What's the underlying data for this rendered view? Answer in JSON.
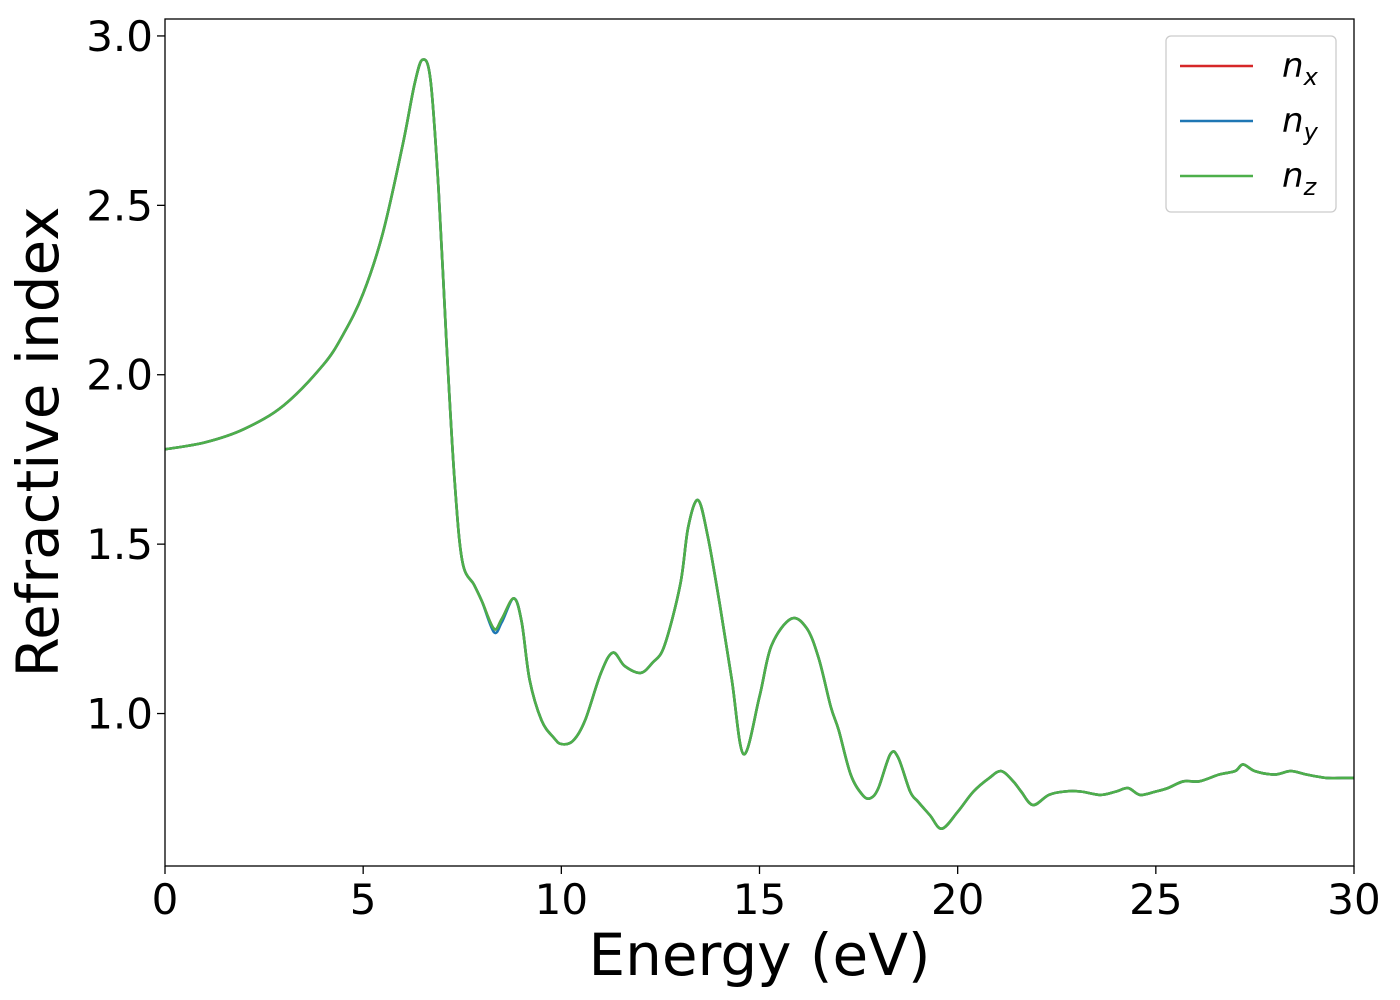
{
  "chart_data": {
    "type": "line",
    "title": "",
    "xlabel": "Energy (eV)",
    "ylabel": "Refractive index",
    "xlim": [
      0,
      30
    ],
    "ylim": [
      0.55,
      3.05
    ],
    "xticks": [
      0,
      5,
      10,
      15,
      20,
      25,
      30
    ],
    "xtick_labels": [
      "0",
      "5",
      "10",
      "15",
      "20",
      "25",
      "30"
    ],
    "yticks": [
      1.0,
      1.5,
      2.0,
      2.5,
      3.0
    ],
    "ytick_labels": [
      "1.0",
      "1.5",
      "2.0",
      "2.5",
      "3.0"
    ],
    "grid": false,
    "legend_position": "top-right",
    "series": [
      {
        "name": "n",
        "sub": "x",
        "color": "#d62728",
        "x": [
          0,
          1,
          2,
          3,
          4,
          4.5,
          5,
          5.5,
          6,
          6.3,
          6.5,
          6.7,
          6.9,
          7.1,
          7.3,
          7.5,
          7.8,
          8.0,
          8.3,
          8.5,
          8.8,
          9.0,
          9.2,
          9.5,
          9.8,
          10.0,
          10.3,
          10.6,
          11.0,
          11.3,
          11.6,
          12.0,
          12.3,
          12.6,
          13.0,
          13.2,
          13.45,
          13.7,
          14.0,
          14.3,
          14.6,
          15.0,
          15.3,
          15.8,
          16.2,
          16.5,
          16.8,
          17.0,
          17.3,
          17.6,
          17.8,
          18.0,
          18.3,
          18.5,
          18.8,
          19.0,
          19.3,
          19.6,
          20.0,
          20.4,
          20.8,
          21.1,
          21.4,
          21.6,
          21.9,
          22.3,
          22.7,
          23.1,
          23.6,
          24.0,
          24.3,
          24.6,
          25.0,
          25.3,
          25.7,
          26.1,
          26.6,
          27.0,
          27.2,
          27.5,
          28.0,
          28.4,
          28.8,
          29.3,
          29.7,
          30.0
        ],
        "y": [
          1.78,
          1.8,
          1.84,
          1.91,
          2.03,
          2.12,
          2.24,
          2.42,
          2.68,
          2.86,
          2.93,
          2.87,
          2.55,
          2.1,
          1.7,
          1.45,
          1.38,
          1.33,
          1.25,
          1.28,
          1.34,
          1.27,
          1.1,
          0.98,
          0.93,
          0.91,
          0.92,
          0.98,
          1.12,
          1.18,
          1.14,
          1.12,
          1.15,
          1.2,
          1.38,
          1.55,
          1.63,
          1.52,
          1.32,
          1.1,
          0.88,
          1.05,
          1.2,
          1.28,
          1.25,
          1.16,
          1.02,
          0.95,
          0.82,
          0.76,
          0.75,
          0.78,
          0.88,
          0.87,
          0.77,
          0.74,
          0.7,
          0.66,
          0.71,
          0.77,
          0.81,
          0.83,
          0.8,
          0.77,
          0.73,
          0.76,
          0.77,
          0.77,
          0.76,
          0.77,
          0.78,
          0.76,
          0.77,
          0.78,
          0.8,
          0.8,
          0.82,
          0.83,
          0.85,
          0.83,
          0.82,
          0.83,
          0.82,
          0.81,
          0.81,
          0.81
        ]
      },
      {
        "name": "n",
        "sub": "y",
        "color": "#1f77b4",
        "x": [
          0,
          1,
          2,
          3,
          4,
          4.5,
          5,
          5.5,
          6,
          6.3,
          6.5,
          6.7,
          6.9,
          7.1,
          7.3,
          7.5,
          7.8,
          8.0,
          8.3,
          8.5,
          8.8,
          9.0,
          9.2,
          9.5,
          9.8,
          10.0,
          10.3,
          10.6,
          11.0,
          11.3,
          11.6,
          12.0,
          12.3,
          12.6,
          13.0,
          13.2,
          13.45,
          13.7,
          14.0,
          14.3,
          14.6,
          15.0,
          15.3,
          15.8,
          16.2,
          16.5,
          16.8,
          17.0,
          17.3,
          17.6,
          17.8,
          18.0,
          18.3,
          18.5,
          18.8,
          19.0,
          19.3,
          19.6,
          20.0,
          20.4,
          20.8,
          21.1,
          21.4,
          21.6,
          21.9,
          22.3,
          22.7,
          23.1,
          23.6,
          24.0,
          24.3,
          24.6,
          25.0,
          25.3,
          25.7,
          26.1,
          26.6,
          27.0,
          27.2,
          27.5,
          28.0,
          28.4,
          28.8,
          29.3,
          29.7,
          30.0
        ],
        "y": [
          1.78,
          1.8,
          1.84,
          1.91,
          2.03,
          2.12,
          2.24,
          2.42,
          2.68,
          2.86,
          2.93,
          2.87,
          2.55,
          2.1,
          1.7,
          1.45,
          1.38,
          1.33,
          1.24,
          1.27,
          1.34,
          1.27,
          1.1,
          0.98,
          0.93,
          0.91,
          0.92,
          0.98,
          1.12,
          1.18,
          1.14,
          1.12,
          1.15,
          1.2,
          1.38,
          1.55,
          1.63,
          1.52,
          1.32,
          1.1,
          0.88,
          1.05,
          1.2,
          1.28,
          1.25,
          1.16,
          1.02,
          0.95,
          0.82,
          0.76,
          0.75,
          0.78,
          0.88,
          0.87,
          0.77,
          0.74,
          0.7,
          0.66,
          0.71,
          0.77,
          0.81,
          0.83,
          0.8,
          0.77,
          0.73,
          0.76,
          0.77,
          0.77,
          0.76,
          0.77,
          0.78,
          0.76,
          0.77,
          0.78,
          0.8,
          0.8,
          0.82,
          0.83,
          0.85,
          0.83,
          0.82,
          0.83,
          0.82,
          0.81,
          0.81,
          0.81
        ]
      },
      {
        "name": "n",
        "sub": "z",
        "color": "#4daf4a",
        "x": [
          0,
          1,
          2,
          3,
          4,
          4.5,
          5,
          5.5,
          6,
          6.3,
          6.5,
          6.7,
          6.9,
          7.1,
          7.3,
          7.5,
          7.8,
          8.0,
          8.3,
          8.5,
          8.8,
          9.0,
          9.2,
          9.5,
          9.8,
          10.0,
          10.3,
          10.6,
          11.0,
          11.3,
          11.6,
          12.0,
          12.3,
          12.6,
          13.0,
          13.2,
          13.45,
          13.7,
          14.0,
          14.3,
          14.6,
          15.0,
          15.3,
          15.8,
          16.2,
          16.5,
          16.8,
          17.0,
          17.3,
          17.6,
          17.8,
          18.0,
          18.3,
          18.5,
          18.8,
          19.0,
          19.3,
          19.6,
          20.0,
          20.4,
          20.8,
          21.1,
          21.4,
          21.6,
          21.9,
          22.3,
          22.7,
          23.1,
          23.6,
          24.0,
          24.3,
          24.6,
          25.0,
          25.3,
          25.7,
          26.1,
          26.6,
          27.0,
          27.2,
          27.5,
          28.0,
          28.4,
          28.8,
          29.3,
          29.7,
          30.0
        ],
        "y": [
          1.78,
          1.8,
          1.84,
          1.91,
          2.03,
          2.12,
          2.24,
          2.42,
          2.68,
          2.86,
          2.93,
          2.87,
          2.55,
          2.1,
          1.7,
          1.45,
          1.38,
          1.33,
          1.25,
          1.28,
          1.34,
          1.27,
          1.1,
          0.98,
          0.93,
          0.91,
          0.92,
          0.98,
          1.12,
          1.18,
          1.14,
          1.12,
          1.15,
          1.2,
          1.38,
          1.55,
          1.63,
          1.52,
          1.32,
          1.1,
          0.88,
          1.05,
          1.2,
          1.28,
          1.25,
          1.16,
          1.02,
          0.95,
          0.82,
          0.76,
          0.75,
          0.78,
          0.88,
          0.87,
          0.77,
          0.74,
          0.7,
          0.66,
          0.71,
          0.77,
          0.81,
          0.83,
          0.8,
          0.77,
          0.73,
          0.76,
          0.77,
          0.77,
          0.76,
          0.77,
          0.78,
          0.76,
          0.77,
          0.78,
          0.8,
          0.8,
          0.82,
          0.83,
          0.85,
          0.83,
          0.82,
          0.83,
          0.82,
          0.81,
          0.81,
          0.81
        ]
      }
    ]
  }
}
